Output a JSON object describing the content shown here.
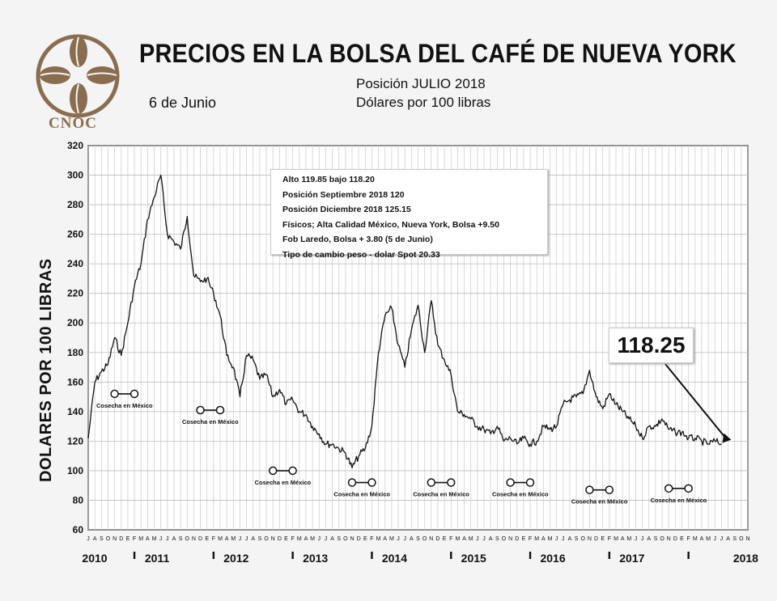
{
  "header": {
    "title": "PRECIOS EN LA BOLSA DEL CAFÉ DE NUEVA YORK",
    "date": "6 de Junio",
    "subtitle_line1": "Posición JULIO 2018",
    "subtitle_line2": "Dólares por 100 libras"
  },
  "logo": {
    "text": "CNOC",
    "color": "#8a6d4e"
  },
  "info_box": {
    "lines": [
      "Alto 119.85 bajo 118.20",
      "Posición Septiembre 2018 120",
      "Posición Diciembre 2018 125.15",
      "Físicos; Alta Calidad México, Nueva York, Bolsa +9.50",
      "Fob Laredo, Bolsa + 3.80 (5 de Junio)",
      "Tipo de cambio peso - dolar Spot 20.33"
    ]
  },
  "callout": {
    "value": "118.25"
  },
  "chart_data": {
    "type": "line",
    "ylabel": "DOLARES POR 100 LIBRAS",
    "xlabel": "",
    "ylim": [
      60,
      320
    ],
    "yticks": [
      60,
      80,
      100,
      120,
      140,
      160,
      180,
      200,
      220,
      240,
      260,
      280,
      300,
      320
    ],
    "grid": true,
    "month_letters": [
      "J",
      "A",
      "S",
      "O",
      "N",
      "D",
      "E",
      "F",
      "M",
      "A",
      "M",
      "J"
    ],
    "x_range": [
      "2010-06",
      "2018-10"
    ],
    "year_labels": [
      {
        "label": "2010",
        "start": "2010-06"
      },
      {
        "label": "2011",
        "start": "2011-01"
      },
      {
        "label": "2012",
        "start": "2012-01"
      },
      {
        "label": "2013",
        "start": "2013-01"
      },
      {
        "label": "2014",
        "start": "2014-01"
      },
      {
        "label": "2015",
        "start": "2015-01"
      },
      {
        "label": "2016",
        "start": "2016-01"
      },
      {
        "label": "2017",
        "start": "2017-01"
      },
      {
        "label": "2018",
        "start": "2018-06"
      }
    ],
    "series": [
      {
        "color": "#111111",
        "points": [
          [
            "2010-06",
            122
          ],
          [
            "2010-07",
            160
          ],
          [
            "2010-08",
            167
          ],
          [
            "2010-09",
            172
          ],
          [
            "2010-10",
            190
          ],
          [
            "2010-11",
            178
          ],
          [
            "2010-12",
            200
          ],
          [
            "2011-01",
            225
          ],
          [
            "2011-02",
            240
          ],
          [
            "2011-03",
            270
          ],
          [
            "2011-04",
            285
          ],
          [
            "2011-05",
            300
          ],
          [
            "2011-06",
            260
          ],
          [
            "2011-07",
            255
          ],
          [
            "2011-08",
            250
          ],
          [
            "2011-09",
            272
          ],
          [
            "2011-10",
            232
          ],
          [
            "2011-11",
            228
          ],
          [
            "2011-12",
            230
          ],
          [
            "2012-01",
            220
          ],
          [
            "2012-02",
            205
          ],
          [
            "2012-03",
            178
          ],
          [
            "2012-04",
            170
          ],
          [
            "2012-05",
            150
          ],
          [
            "2012-06",
            178
          ],
          [
            "2012-07",
            175
          ],
          [
            "2012-08",
            162
          ],
          [
            "2012-09",
            165
          ],
          [
            "2012-10",
            150
          ],
          [
            "2012-11",
            155
          ],
          [
            "2012-12",
            145
          ],
          [
            "2013-01",
            148
          ],
          [
            "2013-02",
            140
          ],
          [
            "2013-03",
            138
          ],
          [
            "2013-04",
            130
          ],
          [
            "2013-05",
            125
          ],
          [
            "2013-06",
            118
          ],
          [
            "2013-07",
            118
          ],
          [
            "2013-08",
            115
          ],
          [
            "2013-09",
            112
          ],
          [
            "2013-10",
            102
          ],
          [
            "2013-11",
            110
          ],
          [
            "2013-12",
            115
          ],
          [
            "2014-01",
            130
          ],
          [
            "2014-02",
            180
          ],
          [
            "2014-03",
            205
          ],
          [
            "2014-04",
            210
          ],
          [
            "2014-05",
            185
          ],
          [
            "2014-06",
            170
          ],
          [
            "2014-07",
            195
          ],
          [
            "2014-08",
            212
          ],
          [
            "2014-09",
            180
          ],
          [
            "2014-10",
            215
          ],
          [
            "2014-11",
            185
          ],
          [
            "2014-12",
            175
          ],
          [
            "2015-01",
            165
          ],
          [
            "2015-02",
            140
          ],
          [
            "2015-03",
            138
          ],
          [
            "2015-04",
            135
          ],
          [
            "2015-05",
            130
          ],
          [
            "2015-06",
            128
          ],
          [
            "2015-07",
            125
          ],
          [
            "2015-08",
            130
          ],
          [
            "2015-09",
            120
          ],
          [
            "2015-10",
            122
          ],
          [
            "2015-11",
            118
          ],
          [
            "2015-12",
            122
          ],
          [
            "2016-01",
            118
          ],
          [
            "2016-02",
            120
          ],
          [
            "2016-03",
            130
          ],
          [
            "2016-04",
            128
          ],
          [
            "2016-05",
            130
          ],
          [
            "2016-06",
            145
          ],
          [
            "2016-07",
            148
          ],
          [
            "2016-08",
            150
          ],
          [
            "2016-09",
            152
          ],
          [
            "2016-10",
            168
          ],
          [
            "2016-11",
            150
          ],
          [
            "2016-12",
            142
          ],
          [
            "2017-01",
            152
          ],
          [
            "2017-02",
            145
          ],
          [
            "2017-03",
            140
          ],
          [
            "2017-04",
            135
          ],
          [
            "2017-05",
            130
          ],
          [
            "2017-06",
            122
          ],
          [
            "2017-07",
            130
          ],
          [
            "2017-08",
            130
          ],
          [
            "2017-09",
            135
          ],
          [
            "2017-10",
            128
          ],
          [
            "2017-11",
            126
          ],
          [
            "2017-12",
            126
          ],
          [
            "2018-01",
            122
          ],
          [
            "2018-02",
            122
          ],
          [
            "2018-03",
            120
          ],
          [
            "2018-04",
            118
          ],
          [
            "2018-05",
            120
          ],
          [
            "2018-06",
            118.25
          ]
        ]
      }
    ],
    "annotations": [
      {
        "text": "Cosecha en México",
        "from": "2010-10",
        "to": "2011-01",
        "y": 152
      },
      {
        "text": "Cosecha en México",
        "from": "2011-11",
        "to": "2012-02",
        "y": 141
      },
      {
        "text": "Cosecha en México",
        "from": "2012-10",
        "to": "2013-01",
        "y": 100
      },
      {
        "text": "Cosecha en México",
        "from": "2013-10",
        "to": "2014-01",
        "y": 92
      },
      {
        "text": "Cosecha en México",
        "from": "2014-10",
        "to": "2015-01",
        "y": 92
      },
      {
        "text": "Cosecha en México",
        "from": "2015-10",
        "to": "2016-01",
        "y": 92
      },
      {
        "text": "Cosecha en México",
        "from": "2016-10",
        "to": "2017-01",
        "y": 87
      },
      {
        "text": "Cosecha en México",
        "from": "2017-10",
        "to": "2018-01",
        "y": 88
      }
    ],
    "callout_value": 118.25
  }
}
